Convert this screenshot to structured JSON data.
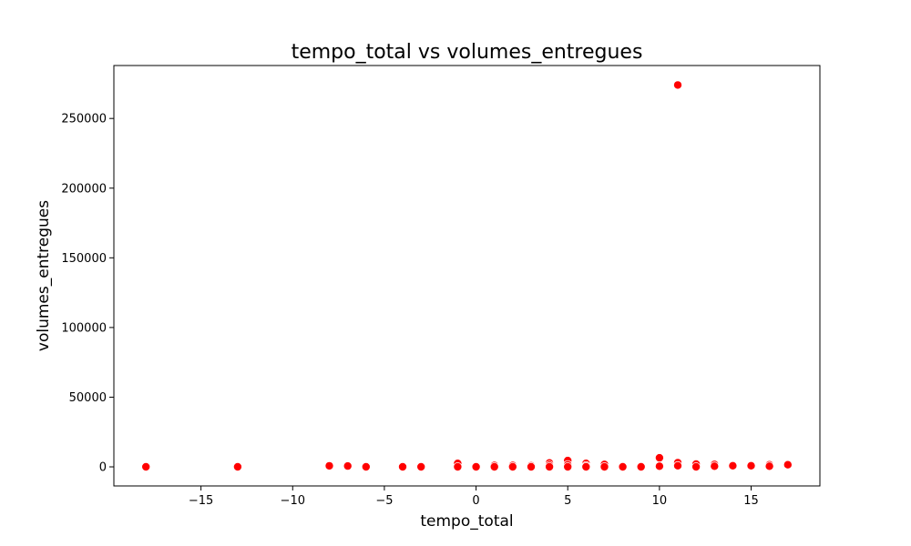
{
  "chart_data": {
    "type": "scatter",
    "title": "tempo_total vs volumes_entregues",
    "xlabel": "tempo_total",
    "ylabel": "volumes_entregues",
    "xlim": [
      -19.75,
      18.75
    ],
    "ylim": [
      -13700,
      288000
    ],
    "xticks": [
      -15,
      -10,
      -5,
      0,
      5,
      10,
      15
    ],
    "xtick_labels": [
      "−15",
      "−10",
      "−5",
      "0",
      "5",
      "10",
      "15"
    ],
    "yticks": [
      0,
      50000,
      100000,
      150000,
      200000,
      250000
    ],
    "ytick_labels": [
      "0",
      "50000",
      "100000",
      "150000",
      "200000",
      "250000"
    ],
    "grid": false,
    "marker_color": "#ff0000",
    "marker_edge_color": "#ffffff",
    "points": [
      {
        "x": -18,
        "y": 0
      },
      {
        "x": -13,
        "y": 0
      },
      {
        "x": -8,
        "y": 700
      },
      {
        "x": -7,
        "y": 600
      },
      {
        "x": -6,
        "y": 0
      },
      {
        "x": -4,
        "y": 0
      },
      {
        "x": -3,
        "y": 0
      },
      {
        "x": -1,
        "y": 2500
      },
      {
        "x": -1,
        "y": 0
      },
      {
        "x": 0,
        "y": 0
      },
      {
        "x": 1,
        "y": 1000
      },
      {
        "x": 1,
        "y": 0
      },
      {
        "x": 2,
        "y": 1000
      },
      {
        "x": 2,
        "y": 0
      },
      {
        "x": 3,
        "y": 800
      },
      {
        "x": 3,
        "y": 0
      },
      {
        "x": 4,
        "y": 2800
      },
      {
        "x": 4,
        "y": 1200
      },
      {
        "x": 4,
        "y": 0
      },
      {
        "x": 5,
        "y": 4500
      },
      {
        "x": 5,
        "y": 1500
      },
      {
        "x": 5,
        "y": 0
      },
      {
        "x": 6,
        "y": 2500
      },
      {
        "x": 6,
        "y": 800
      },
      {
        "x": 6,
        "y": 0
      },
      {
        "x": 7,
        "y": 1800
      },
      {
        "x": 7,
        "y": 0
      },
      {
        "x": 8,
        "y": 500
      },
      {
        "x": 8,
        "y": 0
      },
      {
        "x": 9,
        "y": 500
      },
      {
        "x": 9,
        "y": 0
      },
      {
        "x": 10,
        "y": 6500
      },
      {
        "x": 10,
        "y": 500
      },
      {
        "x": 11,
        "y": 274000
      },
      {
        "x": 11,
        "y": 3000
      },
      {
        "x": 11,
        "y": 800
      },
      {
        "x": 12,
        "y": 2000
      },
      {
        "x": 12,
        "y": 0
      },
      {
        "x": 13,
        "y": 1800
      },
      {
        "x": 13,
        "y": 500
      },
      {
        "x": 14,
        "y": 800
      },
      {
        "x": 15,
        "y": 800
      },
      {
        "x": 16,
        "y": 1500
      },
      {
        "x": 16,
        "y": 500
      },
      {
        "x": 17,
        "y": 1500
      }
    ]
  }
}
